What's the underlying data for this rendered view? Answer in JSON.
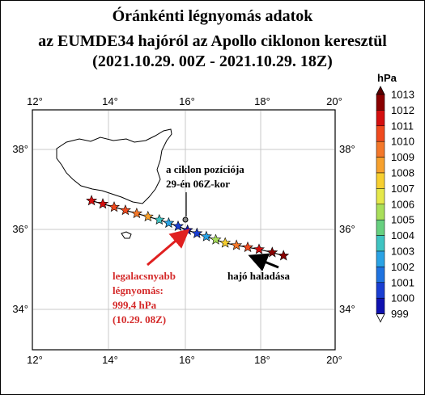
{
  "title": {
    "line1": "Óránkénti légnyomás adatok",
    "line2": "az EUMDE34 hajóról az Apollo ciklonon keresztül",
    "line3": "(2021.10.29. 00Z - 2021.10.29. 18Z)"
  },
  "map": {
    "lon_range": [
      12,
      20
    ],
    "lat_range": [
      33,
      39
    ],
    "lon_ticks": [
      "12°",
      "14°",
      "16°",
      "18°",
      "20°"
    ],
    "lat_ticks": [
      "34°",
      "36°",
      "38°"
    ]
  },
  "annotations": {
    "cyclone_line1": "a ciklon pozíciója",
    "cyclone_line2": "29-én 06Z-kor",
    "min_line1": "legalacsnyabb",
    "min_line2": "légnyomás:",
    "min_line3": "999,4 hPa",
    "min_line4": "(10.29. 08Z)",
    "ship_dir": "hajó haladása"
  },
  "colorbar": {
    "unit": "hPa",
    "levels": [
      "1013",
      "1012",
      "1011",
      "1010",
      "1009",
      "1008",
      "1007",
      "1006",
      "1005",
      "1004",
      "1003",
      "1002",
      "1001",
      "1000",
      "999"
    ],
    "colors": [
      "#8a0000",
      "#d40f0f",
      "#f04a1e",
      "#f4782a",
      "#f7a12d",
      "#f7cf30",
      "#e5e84a",
      "#a9df5a",
      "#67d07f",
      "#3fc4c2",
      "#2aa3e5",
      "#1f73e0",
      "#1a3ed2",
      "#0f11b0"
    ]
  },
  "chart_data": {
    "type": "scatter",
    "description_fields": "ship track points: lon, lat, pressure (hPa)",
    "points": [
      {
        "lon": 13.55,
        "lat": 36.72,
        "p": 1012.0
      },
      {
        "lon": 13.85,
        "lat": 36.64,
        "p": 1011.6
      },
      {
        "lon": 14.15,
        "lat": 36.56,
        "p": 1011.0
      },
      {
        "lon": 14.45,
        "lat": 36.48,
        "p": 1010.3
      },
      {
        "lon": 14.75,
        "lat": 36.4,
        "p": 1009.5
      },
      {
        "lon": 15.05,
        "lat": 36.32,
        "p": 1008.4
      },
      {
        "lon": 15.35,
        "lat": 36.24,
        "p": 1004.0
      },
      {
        "lon": 15.6,
        "lat": 36.16,
        "p": 1002.2
      },
      {
        "lon": 15.85,
        "lat": 36.08,
        "p": 1000.3
      },
      {
        "lon": 16.1,
        "lat": 35.98,
        "p": 999.4
      },
      {
        "lon": 16.35,
        "lat": 35.9,
        "p": 1000.5
      },
      {
        "lon": 16.6,
        "lat": 35.82,
        "p": 1002.5
      },
      {
        "lon": 16.85,
        "lat": 35.74,
        "p": 1005.5
      },
      {
        "lon": 17.1,
        "lat": 35.66,
        "p": 1007.5
      },
      {
        "lon": 17.4,
        "lat": 35.6,
        "p": 1009.2
      },
      {
        "lon": 17.7,
        "lat": 35.55,
        "p": 1010.2
      },
      {
        "lon": 18.0,
        "lat": 35.5,
        "p": 1011.3
      },
      {
        "lon": 18.35,
        "lat": 35.42,
        "p": 1012.2
      },
      {
        "lon": 18.65,
        "lat": 35.34,
        "p": 1012.5
      }
    ],
    "cyclone_center": {
      "lon": 16.0,
      "lat": 36.2,
      "time": "29-én 06Z"
    },
    "minimum": {
      "pressure": 999.4,
      "time": "10.29. 08Z",
      "lon": 16.05,
      "lat": 36.0
    }
  }
}
